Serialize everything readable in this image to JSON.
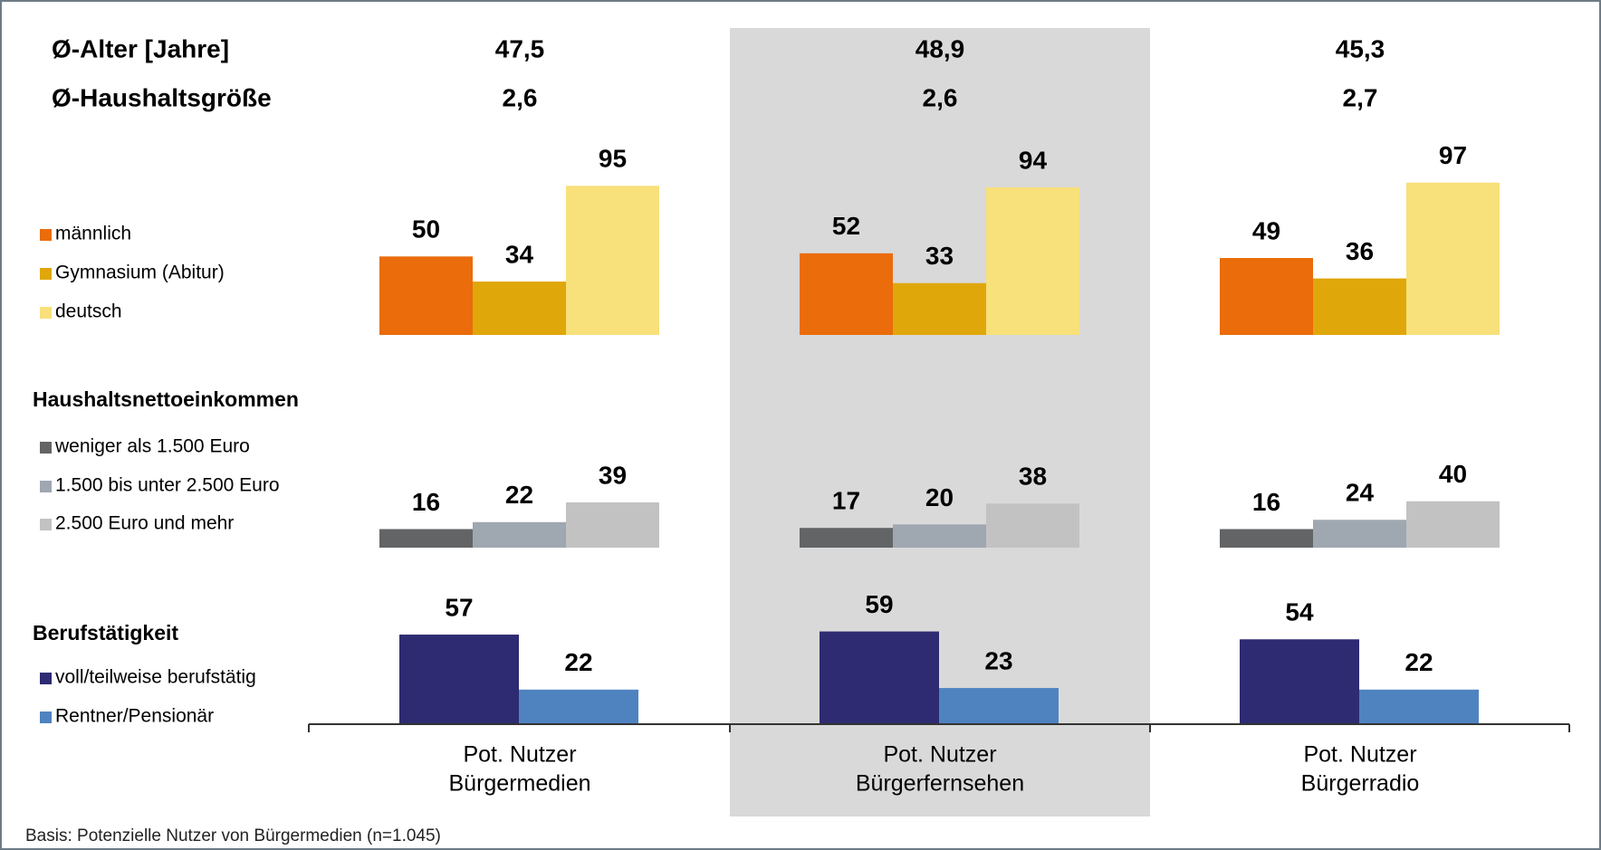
{
  "footnote": "Basis: Potenzielle Nutzer von Bürgermedien  (n=1.045)",
  "colors": {
    "maennlich": "#ea6c0b",
    "gymnasium": "#e0a70b",
    "deutsch": "#f8e07a",
    "inc_low": "#636466",
    "inc_mid": "#9fa7b1",
    "inc_high": "#c2c2c2",
    "work": "#2e2b72",
    "retired": "#4f83c0",
    "highlight": "#d9d9d9"
  },
  "stats": {
    "rows": [
      {
        "label": "Ø-Alter [Jahre]",
        "values": [
          "47,5",
          "48,9",
          "45,3"
        ]
      },
      {
        "label": "Ø-Haushaltsgröße",
        "values": [
          "2,6",
          "2,6",
          "2,7"
        ]
      }
    ]
  },
  "chart_data": {
    "type": "bar",
    "categories": [
      "Pot. Nutzer Bürgermedien",
      "Pot. Nutzer Bürgerfernsehen",
      "Pot. Nutzer Bürgerradio"
    ],
    "category_lines": [
      [
        "Pot. Nutzer",
        "Bürgermedien"
      ],
      [
        "Pot. Nutzer",
        "Bürgerfernsehen"
      ],
      [
        "Pot. Nutzer",
        "Bürgerradio"
      ]
    ],
    "highlighted_category": 1,
    "panels": [
      {
        "id": "demografie",
        "title": "",
        "series": [
          {
            "name": "männlich",
            "color": "#ea6c0b",
            "values": [
              50,
              52,
              49
            ]
          },
          {
            "name": "Gymnasium (Abitur)",
            "color": "#e0a70b",
            "values": [
              34,
              33,
              36
            ]
          },
          {
            "name": "deutsch",
            "color": "#f8e07a",
            "values": [
              95,
              94,
              97
            ]
          }
        ]
      },
      {
        "id": "einkommen",
        "title": "Haushaltsnettoeinkommen",
        "series": [
          {
            "name": "weniger als 1.500 Euro",
            "color": "#636466",
            "values": [
              16,
              17,
              16
            ]
          },
          {
            "name": "1.500 bis unter 2.500 Euro",
            "color": "#9fa7b1",
            "values": [
              22,
              20,
              24
            ]
          },
          {
            "name": "2.500 Euro und mehr",
            "color": "#c2c2c2",
            "values": [
              39,
              38,
              40
            ]
          }
        ]
      },
      {
        "id": "beruf",
        "title": "Berufstätigkeit",
        "series": [
          {
            "name": "voll/teilweise berufstätig",
            "color": "#2e2b72",
            "values": [
              57,
              59,
              54
            ]
          },
          {
            "name": "Rentner/Pensionär",
            "color": "#4f83c0",
            "values": [
              22,
              23,
              22
            ]
          }
        ]
      }
    ]
  }
}
